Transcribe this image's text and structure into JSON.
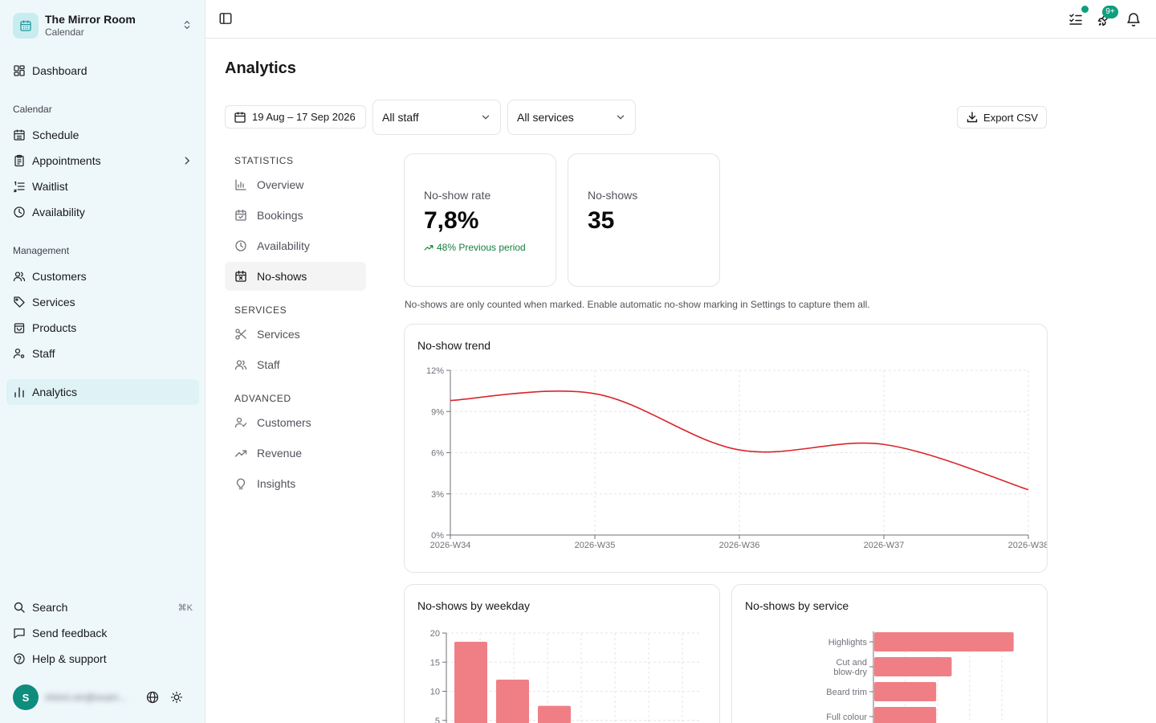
{
  "org": {
    "name": "The Mirror Room",
    "subtitle": "Calendar"
  },
  "sidebar": {
    "dashboard": "Dashboard",
    "calendar_label": "Calendar",
    "calendar_items": [
      "Schedule",
      "Appointments",
      "Waitlist",
      "Availability"
    ],
    "management_label": "Management",
    "management_items": [
      "Customers",
      "Services",
      "Products",
      "Staff"
    ],
    "analytics": "Analytics",
    "footer": {
      "search": "Search",
      "search_shortcut": "⌘K",
      "feedback": "Send feedback",
      "help": "Help & support"
    },
    "user": {
      "initial": "S",
      "email": "shinni.xin@exam..."
    }
  },
  "header": {
    "notifications_count": "9+"
  },
  "page": {
    "title": "Analytics"
  },
  "filters": {
    "date_range": "19 Aug – 17 Sep 2026",
    "staff": "All staff",
    "services": "All services",
    "export": "Export CSV"
  },
  "subnav": {
    "statistics_label": "STATISTICS",
    "statistics": [
      "Overview",
      "Bookings",
      "Availability",
      "No-shows"
    ],
    "services_label": "SERVICES",
    "services": [
      "Services",
      "Staff"
    ],
    "advanced_label": "ADVANCED",
    "advanced": [
      "Customers",
      "Revenue",
      "Insights"
    ]
  },
  "stats": {
    "rate_label": "No-show rate",
    "rate_value": "7,8%",
    "rate_delta": "48% Previous period",
    "count_label": "No-shows",
    "count_value": "35"
  },
  "note": "No-shows are only counted when marked. Enable automatic no-show marking in Settings to capture them all.",
  "colors": {
    "accent": "#0e9f7e",
    "trend_line": "#d9252b",
    "bar": "#f07f85"
  },
  "chart_data": [
    {
      "type": "line",
      "title": "No-show trend",
      "x": [
        "2026-W34",
        "2026-W35",
        "2026-W36",
        "2026-W37",
        "2026-W38"
      ],
      "values": [
        9.8,
        10.3,
        6.2,
        6.6,
        3.3
      ],
      "y_ticks": [
        "0%",
        "3%",
        "6%",
        "9%",
        "12%"
      ],
      "ylim": [
        0,
        12
      ],
      "grid": true
    },
    {
      "type": "bar",
      "title": "No-shows by weekday",
      "categories": [
        "",
        "",
        ""
      ],
      "values": [
        18.5,
        12,
        7.5
      ],
      "y_ticks": [
        "5",
        "10",
        "15",
        "20"
      ],
      "ylim": [
        0,
        20
      ],
      "grid": true
    },
    {
      "type": "bar",
      "orientation": "horizontal",
      "title": "No-shows by service",
      "categories": [
        "Highlights",
        "Cut and blow-dry",
        "Beard trim",
        "Full colour"
      ],
      "values": [
        9,
        5,
        4,
        4
      ],
      "xlim": [
        0,
        10
      ],
      "grid": true
    }
  ]
}
